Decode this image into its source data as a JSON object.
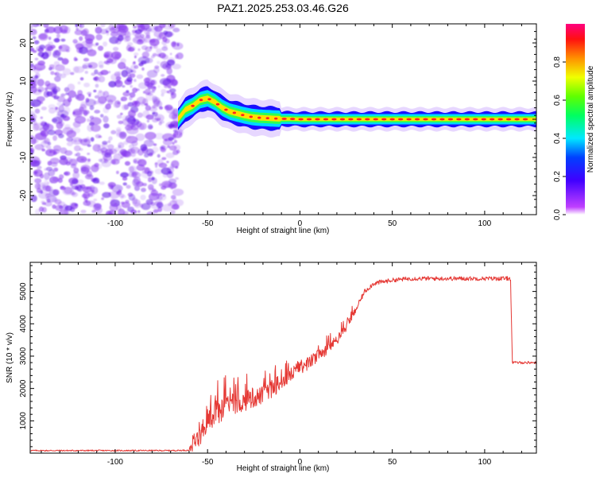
{
  "title": "PAZ1.2025.253.03.46.G26",
  "colors": {
    "line": "#e53935",
    "axis": "#000000",
    "noise": "#8a3cf0",
    "signal_edge": "#1a0dff"
  },
  "chart_data": [
    {
      "type": "heatmap",
      "name": "spectrogram",
      "xlabel": "Height of straight line (km)",
      "ylabel": "Frequency (Hz)",
      "xlim": [
        -146,
        128
      ],
      "ylim": [
        -25,
        25
      ],
      "x_ticks": [
        -100,
        -50,
        0,
        50,
        100
      ],
      "x_tick_labels": [
        "-100",
        "-50",
        "0",
        "50",
        "100"
      ],
      "y_ticks": [
        -20,
        -10,
        0,
        10,
        20
      ],
      "y_tick_labels": [
        "-20",
        "-10",
        "0",
        "10",
        "20"
      ],
      "noise_region_x": [
        -146,
        -65
      ],
      "signal_track": {
        "x": [
          -66,
          -62,
          -58,
          -54,
          -50,
          -46,
          -42,
          -38,
          -34,
          -30,
          -26,
          -22,
          -18,
          -14,
          -10,
          -5,
          0,
          10,
          20,
          30,
          50,
          70,
          90,
          110,
          128
        ],
        "freq": [
          0.0,
          2.5,
          3.5,
          5.0,
          5.5,
          4.5,
          3.0,
          2.0,
          1.5,
          1.0,
          0.6,
          0.4,
          0.3,
          0.2,
          0.1,
          0.1,
          0.0,
          0.0,
          0.0,
          0.0,
          0.0,
          0.0,
          0.0,
          0.0,
          0.0
        ]
      },
      "colorbar": {
        "label": "Normalized spectral amplitude",
        "ticks": [
          0.0,
          0.2,
          0.4,
          0.6,
          0.8
        ],
        "tick_labels": [
          "0.0",
          "0.2",
          "0.4",
          "0.6",
          "0.8"
        ],
        "range": [
          0,
          1
        ],
        "colormap": "magenta-blue-cyan-green-yellow-red (hsv reversed)"
      }
    },
    {
      "type": "line",
      "name": "snr",
      "xlabel": "Height of straight line (km)",
      "ylabel": "SNR (10 * v/v)",
      "xlim": [
        -146,
        128
      ],
      "ylim": [
        0,
        5900
      ],
      "x_ticks": [
        -100,
        -50,
        0,
        50,
        100
      ],
      "x_tick_labels": [
        "-100",
        "-50",
        "0",
        "50",
        "100"
      ],
      "y_ticks": [
        1000,
        2000,
        3000,
        4000,
        5000
      ],
      "y_tick_labels": [
        "1000",
        "2000",
        "3000",
        "4000",
        "5000"
      ],
      "series": [
        {
          "name": "SNR",
          "x": [
            -146,
            -120,
            -90,
            -70,
            -60,
            -58,
            -56,
            -54,
            -52,
            -50,
            -45,
            -40,
            -35,
            -30,
            -25,
            -20,
            -15,
            -10,
            -5,
            0,
            5,
            10,
            15,
            20,
            25,
            30,
            35,
            40,
            50,
            60,
            70,
            80,
            90,
            100,
            110,
            114,
            115,
            120,
            128
          ],
          "base": [
            80,
            80,
            80,
            80,
            90,
            300,
            700,
            600,
            800,
            1000,
            1200,
            1400,
            1500,
            1600,
            1700,
            1800,
            2000,
            2200,
            2400,
            2650,
            2800,
            3000,
            3250,
            3500,
            3900,
            4400,
            5000,
            5250,
            5350,
            5400,
            5400,
            5400,
            5400,
            5400,
            5400,
            5400,
            2800,
            2800,
            2800
          ],
          "noise_amp": [
            40,
            40,
            40,
            40,
            40,
            500,
            900,
            800,
            800,
            750,
            700,
            700,
            650,
            600,
            600,
            550,
            550,
            500,
            500,
            450,
            400,
            400,
            350,
            300,
            250,
            200,
            150,
            150,
            130,
            130,
            130,
            130,
            130,
            130,
            130,
            130,
            80,
            80,
            80
          ]
        }
      ]
    }
  ]
}
